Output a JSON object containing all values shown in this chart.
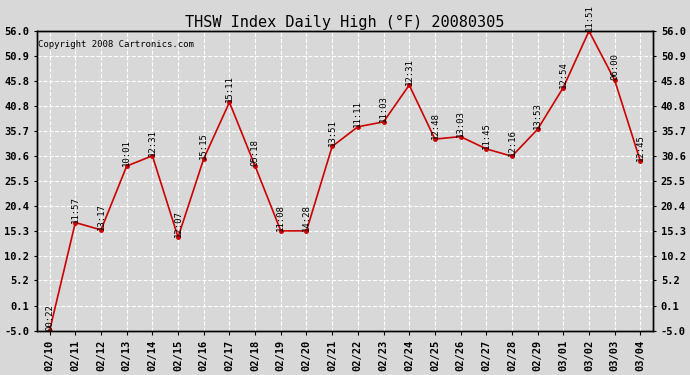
{
  "title": "THSW Index Daily High (°F) 20080305",
  "copyright": "Copyright 2008 Cartronics.com",
  "dates": [
    "02/10",
    "02/11",
    "02/12",
    "02/13",
    "02/14",
    "02/15",
    "02/16",
    "02/17",
    "02/18",
    "02/19",
    "02/20",
    "02/21",
    "02/22",
    "02/23",
    "02/24",
    "02/25",
    "02/26",
    "02/27",
    "02/28",
    "02/29",
    "03/01",
    "03/02",
    "03/03",
    "03/04"
  ],
  "values": [
    -5.0,
    17.0,
    15.5,
    28.5,
    30.6,
    14.0,
    30.0,
    41.5,
    28.5,
    15.3,
    15.3,
    32.5,
    36.5,
    37.5,
    45.0,
    34.0,
    34.5,
    32.0,
    30.5,
    36.0,
    44.5,
    56.0,
    46.0,
    29.5
  ],
  "time_labels": [
    "00:22",
    "11:57",
    "13:17",
    "10:01",
    "12:31",
    "12:07",
    "15:15",
    "15:11",
    "05:18",
    "11:08",
    "14:28",
    "13:51",
    "11:11",
    "11:03",
    "12:31",
    "12:48",
    "13:03",
    "11:45",
    "12:16",
    "13:53",
    "12:54",
    "11:51",
    "06:00",
    "12:45"
  ],
  "ylim": [
    -5.0,
    56.0
  ],
  "yticks": [
    -5.0,
    0.1,
    5.2,
    10.2,
    15.3,
    20.4,
    25.5,
    30.6,
    35.7,
    40.8,
    45.8,
    50.9,
    56.0
  ],
  "line_color": "#cc0000",
  "marker_color": "#cc0000",
  "bg_color": "#d8d8d8",
  "plot_bg_color": "#d8d8d8",
  "grid_color": "#ffffff",
  "title_fontsize": 11,
  "label_fontsize": 6.5,
  "tick_fontsize": 7.5,
  "copyright_fontsize": 6.5
}
